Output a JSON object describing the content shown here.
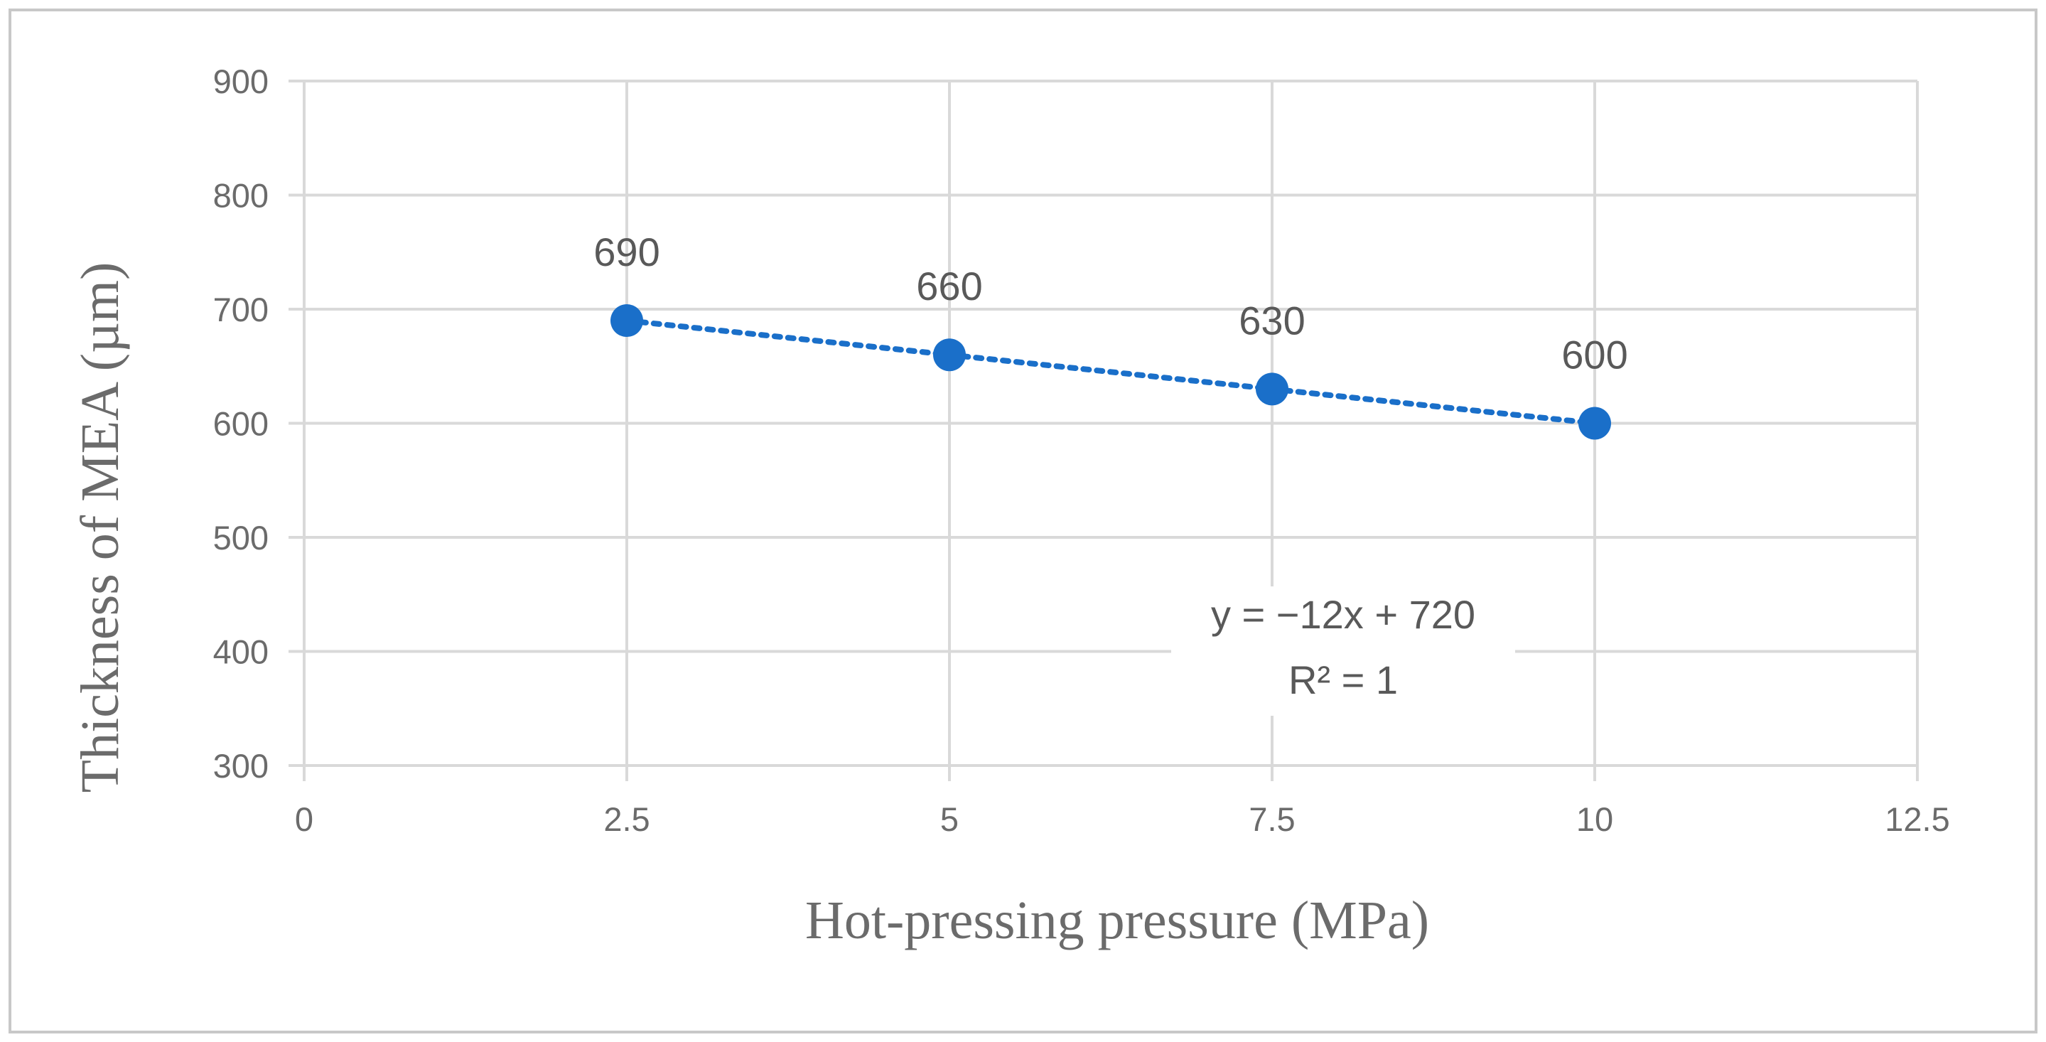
{
  "chart_data": {
    "type": "scatter",
    "title": "",
    "xlabel": "Hot-pressing pressure (MPa)",
    "ylabel": "Thickness of MEA (µm)",
    "xlim": [
      0,
      12.5
    ],
    "ylim": [
      300,
      900
    ],
    "x_ticks": [
      0,
      2.5,
      5,
      7.5,
      10,
      12.5
    ],
    "x_tick_labels": [
      "0",
      "2.5",
      "5",
      "7.5",
      "10",
      "12.5"
    ],
    "y_ticks": [
      300,
      400,
      500,
      600,
      700,
      800,
      900
    ],
    "y_tick_labels": [
      "300",
      "400",
      "500",
      "600",
      "700",
      "800",
      "900"
    ],
    "grid": true,
    "legend": "none",
    "series": [
      {
        "name": "Thickness of MEA",
        "x": [
          2.5,
          5,
          7.5,
          10
        ],
        "values": [
          690,
          660,
          630,
          600
        ],
        "data_labels": [
          "690",
          "660",
          "630",
          "600"
        ],
        "color": "#1a6fc9"
      }
    ],
    "trendline": {
      "type": "linear",
      "style": "dotted",
      "color": "#1a6fc9",
      "slope": -12,
      "intercept": 720,
      "x_from": 2.5,
      "x_to": 10,
      "equation": "y = −12x + 720",
      "r_squared": "R² = 1"
    }
  },
  "colors": {
    "frame": "#c8c8c8",
    "grid": "#d9d9d9",
    "text": "#6b6b6b"
  }
}
